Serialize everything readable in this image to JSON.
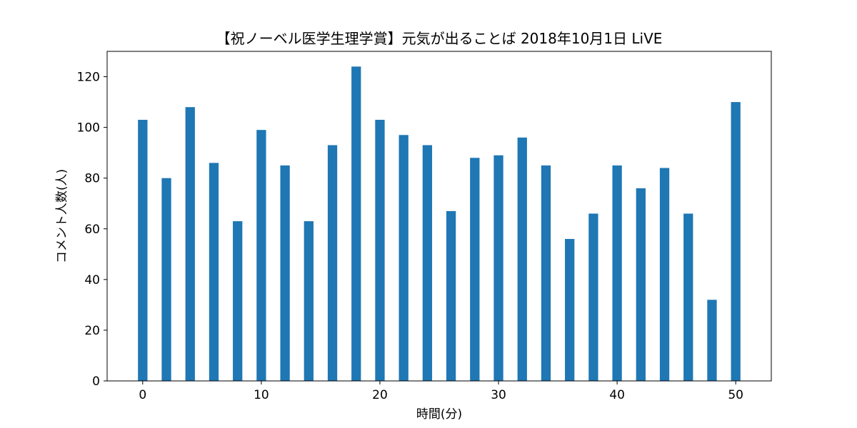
{
  "chart_data": {
    "type": "bar",
    "title": "【祝ノーベル医学生理学賞】元気が出ることば 2018年10月1日 LiVE",
    "xlabel": "時間(分)",
    "ylabel": "コメント人数(人)",
    "x": [
      0,
      2,
      4,
      6,
      8,
      10,
      12,
      14,
      16,
      18,
      20,
      22,
      24,
      26,
      28,
      30,
      32,
      34,
      36,
      38,
      40,
      42,
      44,
      46,
      48,
      50
    ],
    "values": [
      103,
      80,
      108,
      86,
      63,
      99,
      85,
      63,
      93,
      124,
      103,
      97,
      93,
      67,
      88,
      89,
      96,
      85,
      56,
      66,
      85,
      76,
      84,
      66,
      32,
      110
    ],
    "xlim": [
      -3,
      53
    ],
    "ylim": [
      0,
      130
    ],
    "xticks": [
      0,
      10,
      20,
      30,
      40,
      50
    ],
    "yticks": [
      0,
      20,
      40,
      60,
      80,
      100,
      120
    ],
    "bar_color": "#1f77b4",
    "grid": false,
    "legend": "none"
  }
}
